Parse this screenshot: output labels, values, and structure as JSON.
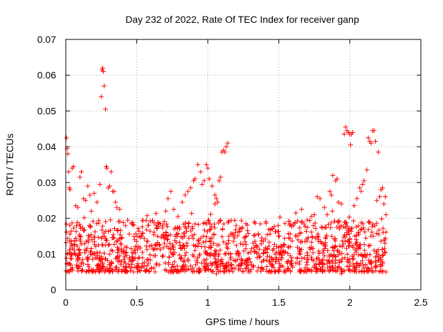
{
  "chart_data": {
    "type": "scatter",
    "title": "Day 232 of 2022, Rate Of TEC Index for receiver ganp",
    "xlabel": "GPS time / hours",
    "ylabel": "ROTI / TECUs",
    "xlim": [
      0,
      2.5
    ],
    "ylim": [
      0,
      0.07
    ],
    "grid": true,
    "marker": "plus",
    "color": "#ff0000",
    "x_ticks": [
      {
        "value": 0,
        "label": "0"
      },
      {
        "value": 0.5,
        "label": "0.5"
      },
      {
        "value": 1,
        "label": "1"
      },
      {
        "value": 1.5,
        "label": "1.5"
      },
      {
        "value": 2,
        "label": "2"
      },
      {
        "value": 2.5,
        "label": "2.5"
      }
    ],
    "y_ticks": [
      {
        "value": 0,
        "label": "0"
      },
      {
        "value": 0.01,
        "label": "0.01"
      },
      {
        "value": 0.02,
        "label": "0.02"
      },
      {
        "value": 0.03,
        "label": "0.03"
      },
      {
        "value": 0.04,
        "label": "0.04"
      },
      {
        "value": 0.05,
        "label": "0.05"
      },
      {
        "value": 0.06,
        "label": "0.06"
      },
      {
        "value": 0.07,
        "label": "0.07"
      }
    ],
    "points": [
      [
        0.005,
        0.0425
      ],
      [
        0.01,
        0.0395
      ],
      [
        0.015,
        0.038
      ],
      [
        0.02,
        0.033
      ],
      [
        0.025,
        0.0285
      ],
      [
        0.03,
        0.028
      ],
      [
        0.045,
        0.034
      ],
      [
        0.055,
        0.0345
      ],
      [
        0.07,
        0.0235
      ],
      [
        0.085,
        0.023
      ],
      [
        0.1,
        0.0315
      ],
      [
        0.11,
        0.033
      ],
      [
        0.125,
        0.0255
      ],
      [
        0.14,
        0.025
      ],
      [
        0.155,
        0.029
      ],
      [
        0.17,
        0.0265
      ],
      [
        0.18,
        0.022
      ],
      [
        0.2,
        0.027
      ],
      [
        0.22,
        0.0245
      ],
      [
        0.24,
        0.0295
      ],
      [
        0.25,
        0.054
      ],
      [
        0.255,
        0.0615
      ],
      [
        0.26,
        0.062
      ],
      [
        0.265,
        0.061
      ],
      [
        0.27,
        0.057
      ],
      [
        0.28,
        0.0505
      ],
      [
        0.285,
        0.0345
      ],
      [
        0.29,
        0.034
      ],
      [
        0.3,
        0.0285
      ],
      [
        0.31,
        0.029
      ],
      [
        0.32,
        0.033
      ],
      [
        0.33,
        0.0275
      ],
      [
        0.34,
        0.0275
      ],
      [
        0.35,
        0.0245
      ],
      [
        0.36,
        0.023
      ],
      [
        0.38,
        0.0225
      ],
      [
        0.72,
        0.0255
      ],
      [
        0.74,
        0.0275
      ],
      [
        0.76,
        0.0225
      ],
      [
        0.79,
        0.0205
      ],
      [
        0.82,
        0.0245
      ],
      [
        0.84,
        0.0265
      ],
      [
        0.86,
        0.0275
      ],
      [
        0.88,
        0.0285
      ],
      [
        0.9,
        0.0305
      ],
      [
        0.91,
        0.031
      ],
      [
        0.93,
        0.035
      ],
      [
        0.95,
        0.033
      ],
      [
        0.96,
        0.0295
      ],
      [
        0.975,
        0.0305
      ],
      [
        0.99,
        0.035
      ],
      [
        1.0,
        0.034
      ],
      [
        1.01,
        0.031
      ],
      [
        1.03,
        0.029
      ],
      [
        1.05,
        0.0265
      ],
      [
        1.06,
        0.0255
      ],
      [
        1.08,
        0.0305
      ],
      [
        1.09,
        0.0315
      ],
      [
        1.1,
        0.0385
      ],
      [
        1.11,
        0.039
      ],
      [
        1.12,
        0.0385
      ],
      [
        1.13,
        0.04
      ],
      [
        1.14,
        0.041
      ],
      [
        1.05,
        0.024
      ],
      [
        1.07,
        0.0245
      ],
      [
        1.62,
        0.0215
      ],
      [
        1.66,
        0.0225
      ],
      [
        1.7,
        0.0195
      ],
      [
        1.73,
        0.0205
      ],
      [
        1.75,
        0.021
      ],
      [
        1.77,
        0.026
      ],
      [
        1.79,
        0.0255
      ],
      [
        1.82,
        0.023
      ],
      [
        1.84,
        0.021
      ],
      [
        1.86,
        0.0275
      ],
      [
        1.87,
        0.0265
      ],
      [
        1.88,
        0.032
      ],
      [
        1.9,
        0.0305
      ],
      [
        1.91,
        0.031
      ],
      [
        1.92,
        0.0245
      ],
      [
        1.94,
        0.024
      ],
      [
        1.96,
        0.0435
      ],
      [
        1.97,
        0.0455
      ],
      [
        1.98,
        0.0445
      ],
      [
        1.99,
        0.044
      ],
      [
        2.0,
        0.0435
      ],
      [
        2.005,
        0.0405
      ],
      [
        2.01,
        0.0435
      ],
      [
        2.02,
        0.044
      ],
      [
        2.03,
        0.0235
      ],
      [
        2.05,
        0.0255
      ],
      [
        2.07,
        0.0285
      ],
      [
        2.08,
        0.0275
      ],
      [
        2.09,
        0.0295
      ],
      [
        2.1,
        0.0305
      ],
      [
        2.12,
        0.0335
      ],
      [
        2.13,
        0.0425
      ],
      [
        2.14,
        0.0415
      ],
      [
        2.15,
        0.041
      ],
      [
        2.16,
        0.0445
      ],
      [
        2.17,
        0.0445
      ],
      [
        2.18,
        0.0415
      ],
      [
        2.19,
        0.025
      ],
      [
        2.2,
        0.0385
      ],
      [
        2.21,
        0.026
      ],
      [
        2.22,
        0.028
      ],
      [
        2.23,
        0.0285
      ],
      [
        2.24,
        0.024
      ],
      [
        2.25,
        0.026
      ],
      [
        2.255,
        0.021
      ],
      [
        0.01,
        0.0075
      ],
      [
        0.03,
        0.0105
      ],
      [
        0.06,
        0.0125
      ],
      [
        0.08,
        0.0095
      ],
      [
        0.1,
        0.0065
      ],
      [
        0.12,
        0.0055
      ],
      [
        0.15,
        0.0085
      ],
      [
        0.18,
        0.0115
      ],
      [
        0.22,
        0.0105
      ],
      [
        0.26,
        0.0085
      ],
      [
        0.3,
        0.0125
      ],
      [
        0.34,
        0.0145
      ],
      [
        0.38,
        0.0095
      ],
      [
        0.42,
        0.0075
      ],
      [
        0.46,
        0.0115
      ],
      [
        0.5,
        0.0135
      ],
      [
        0.54,
        0.0105
      ],
      [
        0.58,
        0.0085
      ],
      [
        0.62,
        0.0095
      ],
      [
        0.66,
        0.0125
      ],
      [
        0.7,
        0.0075
      ],
      [
        0.74,
        0.0105
      ],
      [
        0.78,
        0.0155
      ],
      [
        0.82,
        0.0115
      ],
      [
        0.86,
        0.0085
      ],
      [
        0.9,
        0.0125
      ],
      [
        0.94,
        0.0095
      ],
      [
        0.98,
        0.0075
      ],
      [
        1.02,
        0.0055
      ],
      [
        1.06,
        0.0045
      ],
      [
        1.1,
        0.0085
      ],
      [
        1.14,
        0.0115
      ],
      [
        1.18,
        0.0135
      ],
      [
        1.22,
        0.0095
      ],
      [
        1.26,
        0.0075
      ],
      [
        1.3,
        0.0105
      ],
      [
        1.34,
        0.0125
      ],
      [
        1.38,
        0.0145
      ],
      [
        1.42,
        0.0115
      ],
      [
        1.46,
        0.0085
      ],
      [
        1.5,
        0.0105
      ],
      [
        1.54,
        0.0125
      ],
      [
        1.58,
        0.0095
      ],
      [
        1.62,
        0.0075
      ],
      [
        1.66,
        0.0055
      ],
      [
        1.7,
        0.0085
      ],
      [
        1.74,
        0.0115
      ],
      [
        1.78,
        0.0135
      ],
      [
        1.82,
        0.0095
      ],
      [
        1.86,
        0.0075
      ],
      [
        1.9,
        0.0055
      ],
      [
        1.94,
        0.0045
      ],
      [
        1.98,
        0.0065
      ],
      [
        2.02,
        0.0085
      ],
      [
        2.06,
        0.0115
      ],
      [
        2.1,
        0.0095
      ],
      [
        2.14,
        0.0075
      ],
      [
        2.18,
        0.0065
      ],
      [
        2.22,
        0.0085
      ],
      [
        2.25,
        0.0105
      ]
    ]
  }
}
